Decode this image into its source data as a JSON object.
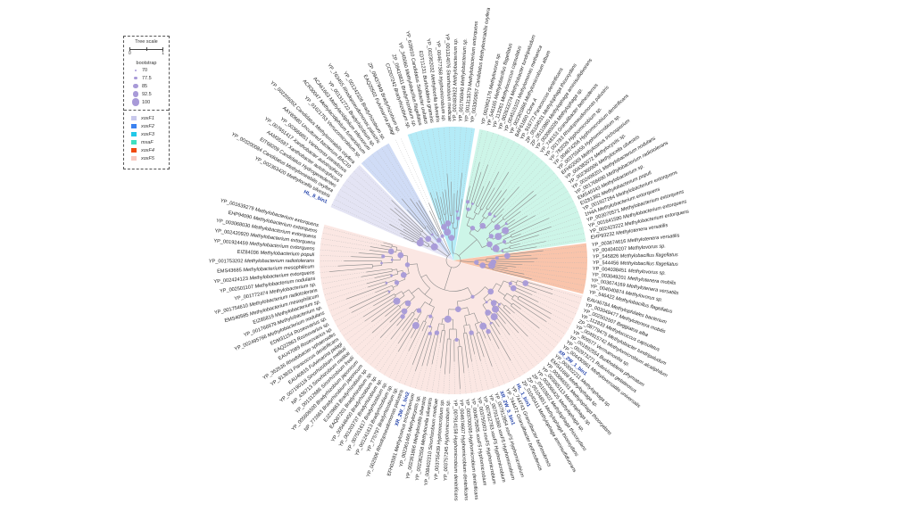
{
  "legend": {
    "tree_scale_title": "Tree scale",
    "tree_scale_min": "0",
    "tree_scale_max": "1",
    "bootstrap_title": "bootstrap",
    "bootstrap_values": [
      "70",
      "77.5",
      "85",
      "92.5",
      "100"
    ],
    "bootstrap_color": "#a89ad8"
  },
  "clades": [
    {
      "name": "xoxF3",
      "legend_color": "#22c8e8",
      "fill": "#b4ebf7",
      "start": 250,
      "end": 268,
      "leaves": [
        "CCD07242 Bradyrhizobium sp.",
        "ZP_09419831 Bradyrhizobium sp.",
        "YP_345060 Methylobacillus flagellatus",
        "YP_628610 Candidatus Solibacter usitatus",
        "EDT11231 Burkholderia graminis",
        "YP_002362032 Methylocella silvestris",
        "YP_004677368 Hyphomicrobium sp.",
        "YP_001314076 Sinorhizobium medicae",
        "YP_002483922 Methylobacterium sp.",
        "YP_001766940 Methylobacterium sp.",
        "YP_001313579 Methylobacterium extorquens",
        "YP_003300957 Candidatus Methylomirabilis oxyfera"
      ]
    },
    {
      "name": "mxaF",
      "legend_color": "#40e0c0",
      "fill": "#cdf5e8",
      "start": 270,
      "end": 357,
      "leaves": [
        "YP_002962176 Methylovorus sp.",
        "YP_546165 Methylobacillus flagellatus",
        "YP_113261 Methylococcus capsulatus",
        "YP_002633274 Methylobacter tundripaludum",
        "YP_004515103 Methylomonas methanica",
        "YP_002301866 Methylomicrobium album",
        "BAF61660 Clone A",
        "YP_916772 Paracoccus denitrificans",
        "ZP_05104531 Methylophaga thiooxydans",
        "ZP_05110960 Methylophaga aminisulfidivorans",
        "YP_003065026 Methylophaga sp.",
        "YP_748153 Granulibacter bethesdensis",
        "YP_001783 Rhodopseudomonas palustris",
        "YP_782026 Hyphomicrobium sp.",
        "YP_004674256 Hyphomicrobium denitrificans",
        "YP_003755456 Hyphomicrobium sp.",
        "EFH02069 Methylosinus trichosporium",
        "YP_004382072 Methylocystis sp.",
        "YP_002360906 Methylocella silvestris",
        "YP_002499201 Methylobacterium nodulans",
        "YP_001766690 Methylobacterium radiotolerans",
        "EMS40343 Methylobacterium sp.",
        "EIZ81392 Methylobacterium populi",
        "YP_001927264 Methylobacterium extorquens",
        "1H4A Methylobacterium extorquens",
        "YP_003070571 Methylobacterium extorquens",
        "YP_001641590 Methylobacterium extorquens",
        "YP_002423222 Methylobacterium extorquens",
        "EHP93232 Methylotenera versatilis"
      ]
    },
    {
      "name": "xoxF4",
      "legend_color": "#f04a10",
      "fill": "#f9c4ab",
      "start": 358,
      "end": 375,
      "leaves": [
        "YP_003674616 Methylotenera versatilis",
        "YP_004040207 Methylovorus sp.",
        "YP_545826 Methylobacillus flagellatus",
        "YP_544456 Methylobacillus flagellatus",
        "YP_004038451 Methylovorus sp.",
        "YP_003049201 Methylotenera mobilis",
        "YP_003674169 Methylotenera versatilis",
        "YP_004040874 Methylovorus sp.",
        "YP_546422 Methylobacillus flagellatus"
      ]
    },
    {
      "name": "xoxF5",
      "legend_color": "#f8c8c0",
      "fill": "#fbe7e3",
      "start": 17,
      "end": 193,
      "leaves": [
        "EAV46784 Methylophilales bacterium",
        "YP_003049477 Methylotenera mobilis",
        "YP_002502507 Beggiatoa alba",
        "YP_112833 Methylococcus capsulatus",
        "ZP_08779475 Methylobacter tundripaludum",
        "YP_004915742 Methylomicrobium alcaliphilum",
        "YP_909577 Vermamoeba sp.",
        "YP_001892554 Burkholderia phymatum",
        "YP_002973271 Rubrivivax gelatinosus",
        "YP_004430961 Methyloversatilis universalis",
        "XR_2W_1_bin1",
        "YP_003002211 Methylophaga sp.",
        "EMS41669 Methylophaga sp.",
        "YP_003066551 Methylophaga thiooxydans",
        "YP_003065113 Methylophaga sp.",
        "YP_003066425 Methylophaga sp.",
        "ZP_05103822 Methylophaga thiooxydans",
        "ZP_05104851 Methylophaga thiooxydans",
        "ZP_01040411 Methylophaga aminisulfidivorans",
        "HL_1_bin1",
        "YP_744743 Granulibacter bethesdensis",
        "YP_744472 Granulibacter bethesdensis",
        "XR_2W_5_bin1",
        "YP_007912854 xoxF5 Hyphomicrobium",
        "YP_007913360 xoxF5 Hyphomicrobium",
        "YP_007912783 xoxF5 Hyphomicrobium",
        "YP_003755003 xoxF5 Hyphomicrobium",
        "YP_004675805 xoxF5 Hyphomicrobium",
        "YP_003700095 Hyphomicrobium denitrificans",
        "YP_004674607 Hyphomicrobium denitrificans",
        "YP_007914158 Hyphomicrobium denitrificans",
        "YP_003757245 Hyphomicrobium sp.",
        "YP_003755439 Hyphomicrobium sp.",
        "YP_008402310 Sinorhizobium medicae",
        "YP_002362558 Methylocella silvestris",
        "YP_002361866 Methylocella silvestris",
        "YP_002361465 Methylocystis sp.",
        "EFH03581 Methylosinus trichosporium",
        "XR_2W_1_bin2",
        "YP_002506 Rhodopseudomonas palustris",
        "YP_775797 Bradyrhizobium sp.",
        "YP_001241613 Bradyrhizobium sp.",
        "YP_007551617 Bradyrhizobium sp.",
        "YP_001203737 Bradyrhizobium sp.",
        "YP_005446400 Bradyrhizobium sp.",
        "EAQ87201 Bradyrhizobium sp.",
        "EJZ29663 Bradyrhizobium sp.",
        "NP_772663 Bradyrhizobium japonicum",
        "YP_005606500 Bradyrhizobium japonicum",
        "YP_001312686 Sinorhizobium fredii",
        "NP_436713 Sinorhizobium meliloti",
        "YP_007190118 Sinorhizobium meliloti",
        "EAU40815 Fulvimarina pelagi",
        "YP_913833 Paracoccus denitrificans",
        "YP_352636 Rhodobacter sphaeroides",
        "EAU47089 Roseovarius sp.",
        "EAQ22863 Roseovarius sp.",
        "EDM31154 Roseovarius sp.",
        "YP_002495766 Methylobacterium nodulans",
        "YP_001766979 Methylobacterium sp.",
        "EIZ85819 Methylobacterium sp.",
        "EMS40585 Methylobacterium mesophilicum",
        "YP_001754610 Methylobacterium radiotolerans",
        "YP_001772474 Methylobacterium sp.",
        "YP_002501107 Methylobacterium nodulans",
        "YP_002424123 Methylobacterium extorquens",
        "EMS43685 Methylobacterium mesophilicum",
        "YP_001753202 Methylobacterium radiotolerans",
        "EIZ84036 Methylobacterium populi",
        "YP_001924459 Methylobacterium extorquens",
        "YP_002420920 Methylobacterium extorquens",
        "YP_003068030 Methylobacterium extorquens",
        "EHP94090 Methylobacterium extorquens",
        "YP_001639279 Methylobacterium extorquens"
      ]
    },
    {
      "name": "xoxF1",
      "legend_color": "#c8c8ec",
      "fill": "#e4e4f4",
      "start": 203,
      "end": 232,
      "leaves": [
        "HL_8_bin1",
        "YP_002363420 Methylocella silvestris",
        "YP_003200084 Candidatus Methylomirabilis oxyfera",
        "EIT68209 Candidatus Hydrogenedentes",
        "AAM35597 Xanthobacter autotrophicus",
        "YP_007651417 Xanthobacter autotrophicus",
        "YP_003666851 Variovorax paradoxus",
        "AAY80680 Uncultured bacterium BAC10",
        "YP_002205052 Candidatus Methylomirabilis oxyfera"
      ]
    },
    {
      "name": "xoxF2",
      "legend_color": "#3b82f0",
      "fill": "#d0dcf6",
      "start": 233,
      "end": 244,
      "leaves": [
        "YP_01621753 Verrucomicrobium sp.",
        "ACR30047 Methylacidiphilum fumariolicum",
        "ACA61663 Methylacidiphilum infernorum",
        "YP_001312722 Bradyrhizobium sp.",
        "YP_763455 Rhodopseudomonas palustris",
        "YP_001242326 Bradyrhizobium sp."
      ]
    }
  ],
  "unassigned_leaves": {
    "start": 245,
    "end": 249,
    "leaves": [
      "EAQ20502 Fulvimarina pelagi",
      "ZP_09437949 Bradyrhizobium sp."
    ]
  },
  "highlight_color": "#1f3fa8"
}
